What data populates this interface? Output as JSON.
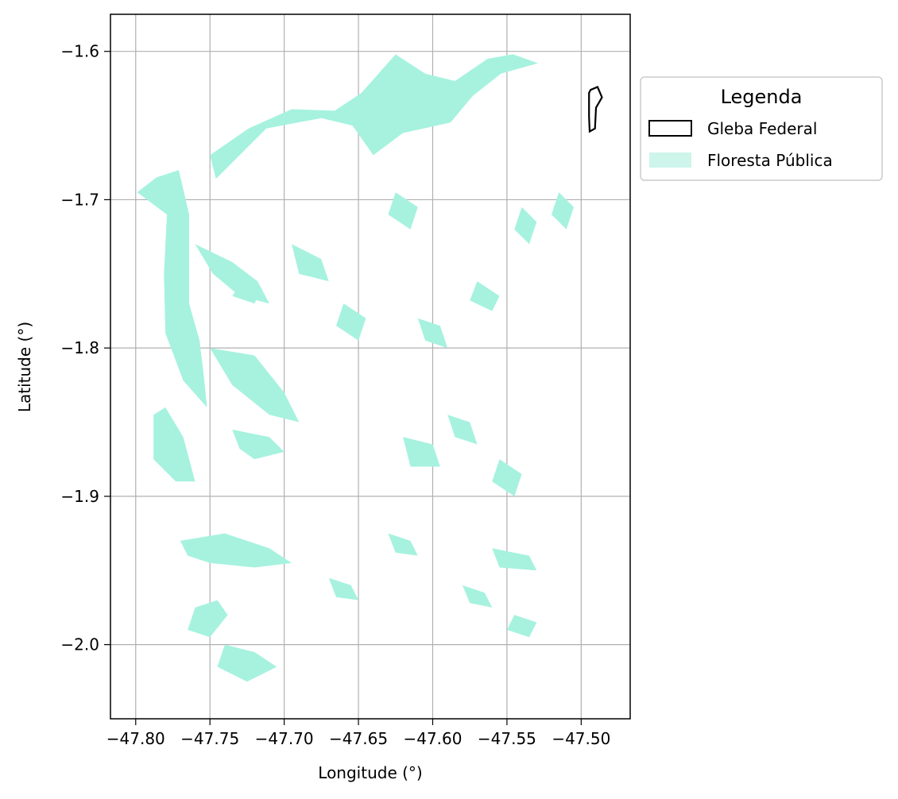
{
  "chart_data": {
    "type": "map",
    "xlabel": "Longitude (°)",
    "ylabel": "Latitude (°)",
    "xlim": [
      -47.817,
      -47.467
    ],
    "ylim": [
      -2.05,
      -1.575
    ],
    "x_ticks": [
      -47.8,
      -47.75,
      -47.7,
      -47.65,
      -47.6,
      -47.55,
      -47.5
    ],
    "x_tick_labels": [
      "−47.80",
      "−47.75",
      "−47.70",
      "−47.65",
      "−47.60",
      "−47.55",
      "−47.50"
    ],
    "y_ticks": [
      -1.6,
      -1.7,
      -1.8,
      -1.9,
      -2.0
    ],
    "y_tick_labels": [
      "−1.6",
      "−1.7",
      "−1.8",
      "−1.9",
      "−2.0"
    ],
    "grid": true,
    "legend": {
      "title": "Legenda",
      "placement": "outside-top-right",
      "entries": [
        {
          "label": "Gleba Federal",
          "style": "outline",
          "color": "#000000"
        },
        {
          "label": "Floresta Pública",
          "style": "fill",
          "color": "#a6f2df"
        }
      ]
    },
    "gleba_federal": [
      [
        -47.4937,
        -1.626
      ],
      [
        -47.489,
        -1.624
      ],
      [
        -47.486,
        -1.631
      ],
      [
        -47.49,
        -1.638
      ],
      [
        -47.4907,
        -1.652
      ],
      [
        -47.4943,
        -1.654
      ],
      [
        -47.4947,
        -1.644
      ],
      [
        -47.4947,
        -1.628
      ]
    ],
    "floresta_publica": [
      [
        [
          -47.799,
          -1.695
        ],
        [
          -47.786,
          -1.685
        ],
        [
          -47.771,
          -1.68
        ],
        [
          -47.764,
          -1.71
        ],
        [
          -47.764,
          -1.74
        ],
        [
          -47.764,
          -1.77
        ],
        [
          -47.757,
          -1.795
        ],
        [
          -47.754,
          -1.82
        ],
        [
          -47.752,
          -1.84
        ],
        [
          -47.768,
          -1.822
        ],
        [
          -47.78,
          -1.79
        ],
        [
          -47.781,
          -1.75
        ],
        [
          -47.779,
          -1.71
        ]
      ],
      [
        [
          -47.746,
          -1.686
        ],
        [
          -47.712,
          -1.652
        ],
        [
          -47.675,
          -1.645
        ],
        [
          -47.654,
          -1.65
        ],
        [
          -47.64,
          -1.67
        ],
        [
          -47.62,
          -1.655
        ],
        [
          -47.588,
          -1.648
        ],
        [
          -47.573,
          -1.63
        ],
        [
          -47.554,
          -1.615
        ],
        [
          -47.529,
          -1.608
        ],
        [
          -47.546,
          -1.602
        ],
        [
          -47.563,
          -1.605
        ],
        [
          -47.585,
          -1.62
        ],
        [
          -47.605,
          -1.615
        ],
        [
          -47.625,
          -1.602
        ],
        [
          -47.648,
          -1.628
        ],
        [
          -47.666,
          -1.64
        ],
        [
          -47.695,
          -1.639
        ],
        [
          -47.724,
          -1.652
        ],
        [
          -47.75,
          -1.67
        ]
      ],
      [
        [
          -47.788,
          -1.845
        ],
        [
          -47.78,
          -1.84
        ],
        [
          -47.768,
          -1.86
        ],
        [
          -47.76,
          -1.89
        ],
        [
          -47.773,
          -1.89
        ],
        [
          -47.788,
          -1.875
        ]
      ],
      [
        [
          -47.76,
          -1.73
        ],
        [
          -47.735,
          -1.742
        ],
        [
          -47.718,
          -1.755
        ],
        [
          -47.71,
          -1.77
        ],
        [
          -47.73,
          -1.765
        ],
        [
          -47.748,
          -1.75
        ]
      ],
      [
        [
          -47.75,
          -1.8
        ],
        [
          -47.72,
          -1.805
        ],
        [
          -47.7,
          -1.83
        ],
        [
          -47.69,
          -1.85
        ],
        [
          -47.71,
          -1.845
        ],
        [
          -47.735,
          -1.825
        ]
      ],
      [
        [
          -47.77,
          -1.93
        ],
        [
          -47.74,
          -1.925
        ],
        [
          -47.71,
          -1.935
        ],
        [
          -47.695,
          -1.945
        ],
        [
          -47.72,
          -1.948
        ],
        [
          -47.75,
          -1.945
        ],
        [
          -47.765,
          -1.94
        ]
      ],
      [
        [
          -47.735,
          -1.855
        ],
        [
          -47.71,
          -1.86
        ],
        [
          -47.7,
          -1.87
        ],
        [
          -47.72,
          -1.875
        ],
        [
          -47.73,
          -1.868
        ]
      ],
      [
        [
          -47.76,
          -1.975
        ],
        [
          -47.745,
          -1.97
        ],
        [
          -47.738,
          -1.98
        ],
        [
          -47.75,
          -1.995
        ],
        [
          -47.765,
          -1.99
        ]
      ],
      [
        [
          -47.74,
          -2.0
        ],
        [
          -47.72,
          -2.005
        ],
        [
          -47.705,
          -2.015
        ],
        [
          -47.725,
          -2.025
        ],
        [
          -47.745,
          -2.015
        ]
      ],
      [
        [
          -47.725,
          -1.75
        ],
        [
          -47.715,
          -1.76
        ],
        [
          -47.72,
          -1.77
        ],
        [
          -47.735,
          -1.765
        ]
      ],
      [
        [
          -47.695,
          -1.73
        ],
        [
          -47.675,
          -1.74
        ],
        [
          -47.67,
          -1.755
        ],
        [
          -47.69,
          -1.75
        ]
      ],
      [
        [
          -47.66,
          -1.77
        ],
        [
          -47.645,
          -1.78
        ],
        [
          -47.65,
          -1.795
        ],
        [
          -47.665,
          -1.785
        ]
      ],
      [
        [
          -47.625,
          -1.695
        ],
        [
          -47.61,
          -1.705
        ],
        [
          -47.615,
          -1.72
        ],
        [
          -47.63,
          -1.71
        ]
      ],
      [
        [
          -47.61,
          -1.78
        ],
        [
          -47.595,
          -1.785
        ],
        [
          -47.59,
          -1.8
        ],
        [
          -47.605,
          -1.795
        ]
      ],
      [
        [
          -47.59,
          -1.845
        ],
        [
          -47.575,
          -1.85
        ],
        [
          -47.57,
          -1.865
        ],
        [
          -47.585,
          -1.86
        ]
      ],
      [
        [
          -47.62,
          -1.86
        ],
        [
          -47.6,
          -1.865
        ],
        [
          -47.595,
          -1.88
        ],
        [
          -47.615,
          -1.88
        ]
      ],
      [
        [
          -47.555,
          -1.875
        ],
        [
          -47.54,
          -1.885
        ],
        [
          -47.545,
          -1.9
        ],
        [
          -47.56,
          -1.89
        ]
      ],
      [
        [
          -47.56,
          -1.935
        ],
        [
          -47.535,
          -1.94
        ],
        [
          -47.53,
          -1.95
        ],
        [
          -47.555,
          -1.948
        ]
      ],
      [
        [
          -47.545,
          -1.98
        ],
        [
          -47.53,
          -1.985
        ],
        [
          -47.535,
          -1.995
        ],
        [
          -47.55,
          -1.99
        ]
      ],
      [
        [
          -47.54,
          -1.705
        ],
        [
          -47.53,
          -1.715
        ],
        [
          -47.535,
          -1.73
        ],
        [
          -47.545,
          -1.72
        ]
      ],
      [
        [
          -47.57,
          -1.755
        ],
        [
          -47.555,
          -1.765
        ],
        [
          -47.56,
          -1.775
        ],
        [
          -47.575,
          -1.768
        ]
      ],
      [
        [
          -47.515,
          -1.695
        ],
        [
          -47.505,
          -1.705
        ],
        [
          -47.51,
          -1.72
        ],
        [
          -47.52,
          -1.71
        ]
      ],
      [
        [
          -47.67,
          -1.955
        ],
        [
          -47.655,
          -1.96
        ],
        [
          -47.65,
          -1.97
        ],
        [
          -47.665,
          -1.968
        ]
      ],
      [
        [
          -47.63,
          -1.925
        ],
        [
          -47.615,
          -1.93
        ],
        [
          -47.61,
          -1.94
        ],
        [
          -47.625,
          -1.938
        ]
      ],
      [
        [
          -47.58,
          -1.96
        ],
        [
          -47.565,
          -1.965
        ],
        [
          -47.56,
          -1.975
        ],
        [
          -47.575,
          -1.972
        ]
      ]
    ]
  }
}
